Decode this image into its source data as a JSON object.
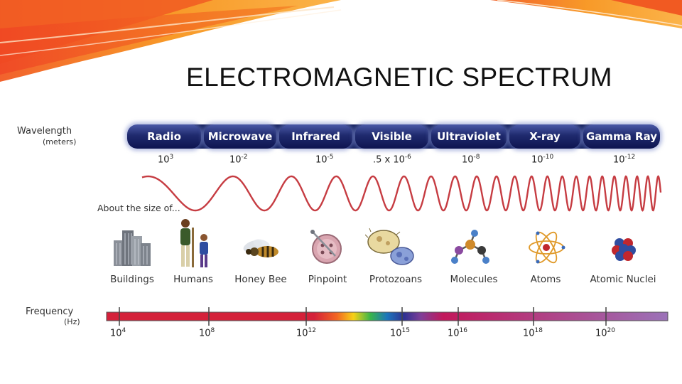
{
  "slide": {
    "title": "ELECTROMAGNETIC SPECTRUM"
  },
  "diagram": {
    "wavelength_label": "Wavelength",
    "wavelength_unit": "(meters)",
    "size_label": "About the size of...",
    "frequency_label": "Frequency",
    "frequency_unit": "(Hz)",
    "bands": [
      {
        "name": "Radio",
        "wavelength_base": "10",
        "wavelength_exp": "3"
      },
      {
        "name": "Microwave",
        "wavelength_base": "10",
        "wavelength_exp": "-2"
      },
      {
        "name": "Infrared",
        "wavelength_base": "10",
        "wavelength_exp": "-5"
      },
      {
        "name": "Visible",
        "wavelength_base": ".5 x 10",
        "wavelength_exp": "-6"
      },
      {
        "name": "Ultraviolet",
        "wavelength_base": "10",
        "wavelength_exp": "-8"
      },
      {
        "name": "X-ray",
        "wavelength_base": "10",
        "wavelength_exp": "-10"
      },
      {
        "name": "Gamma Ray",
        "wavelength_base": "10",
        "wavelength_exp": "-12"
      }
    ],
    "objects": [
      {
        "label": "Buildings",
        "icon": "buildings-icon"
      },
      {
        "label": "Humans",
        "icon": "humans-icon"
      },
      {
        "label": "Honey Bee",
        "icon": "honey-bee-icon"
      },
      {
        "label": "Pinpoint",
        "icon": "pinpoint-icon"
      },
      {
        "label": "Protozoans",
        "icon": "protozoans-icon"
      },
      {
        "label": "Molecules",
        "icon": "molecules-icon"
      },
      {
        "label": "Atoms",
        "icon": "atoms-icon"
      },
      {
        "label": "Atomic Nuclei",
        "icon": "atomic-nuclei-icon"
      }
    ],
    "frequencies": [
      {
        "base": "10",
        "exp": "4"
      },
      {
        "base": "10",
        "exp": "8"
      },
      {
        "base": "10",
        "exp": "12"
      },
      {
        "base": "10",
        "exp": "15"
      },
      {
        "base": "10",
        "exp": "16"
      },
      {
        "base": "10",
        "exp": "18"
      },
      {
        "base": "10",
        "exp": "20"
      }
    ],
    "colors": {
      "band_pill": "#1f2a6e",
      "wave": "#c0272d",
      "frequency_bar_start": "#d4213a",
      "frequency_bar_end": "#9b72b8",
      "banner_orange": "#f26a1b",
      "banner_red": "#e63322"
    }
  }
}
